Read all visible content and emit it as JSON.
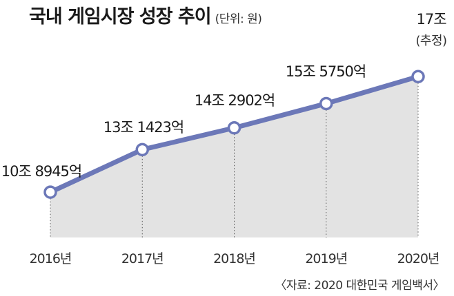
{
  "title": "국내 게임시장 성장 추이",
  "unit": "(단위: 원)",
  "source": "〈자료: 2020 대한민국 게임백서〉",
  "colors": {
    "line": "#6c78b8",
    "marker_fill": "#ffffff",
    "area": "#e3e3e3",
    "guide": "#555555"
  },
  "chart_data": {
    "type": "area",
    "title": "국내 게임시장 성장 추이",
    "unit": "(단위: 원)",
    "categories": [
      "2016년",
      "2017년",
      "2018년",
      "2019년",
      "2020년"
    ],
    "x": [
      2016,
      2017,
      2018,
      2019,
      2020
    ],
    "series": [
      {
        "values": [
          108945,
          131423,
          142902,
          155750,
          170000
        ],
        "unit_note": "억 원",
        "labels": [
          "10조 8945억",
          "13조 1423억",
          "14조 2902억",
          "15조 5750억",
          "17조"
        ],
        "sublabels": [
          "",
          "",
          "",
          "",
          "(추정)"
        ]
      }
    ],
    "ylim": [
      85000,
      185000
    ],
    "grid": false,
    "legend": "none",
    "markers": "circle",
    "source": "〈자료: 2020 대한민국 게임백서〉"
  }
}
